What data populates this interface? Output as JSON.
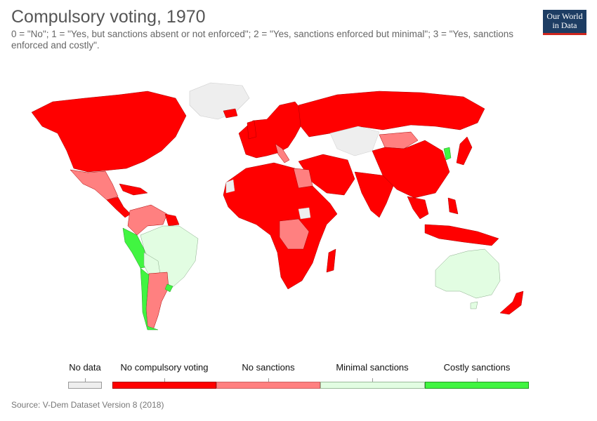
{
  "title": "Compulsory voting, 1970",
  "subtitle": "0 = \"No\"; 1 = \"Yes, but sanctions absent or not enforced\"; 2 = \"Yes, sanctions enforced but minimal\"; 3 = \"Yes, sanctions enforced and costly\".",
  "logo": {
    "line1": "Our World",
    "line2": "in Data"
  },
  "legend": {
    "no_data": {
      "label": "No data",
      "color": "#eeeeee"
    },
    "items": [
      {
        "label": "No compulsory voting",
        "color": "#ff0000"
      },
      {
        "label": "No sanctions",
        "color": "#ff8080"
      },
      {
        "label": "Minimal sanctions",
        "color": "#e2fde2"
      },
      {
        "label": "Costly sanctions",
        "color": "#41f541"
      }
    ]
  },
  "source": "Source: V-Dem Dataset Version 8 (2018)"
}
